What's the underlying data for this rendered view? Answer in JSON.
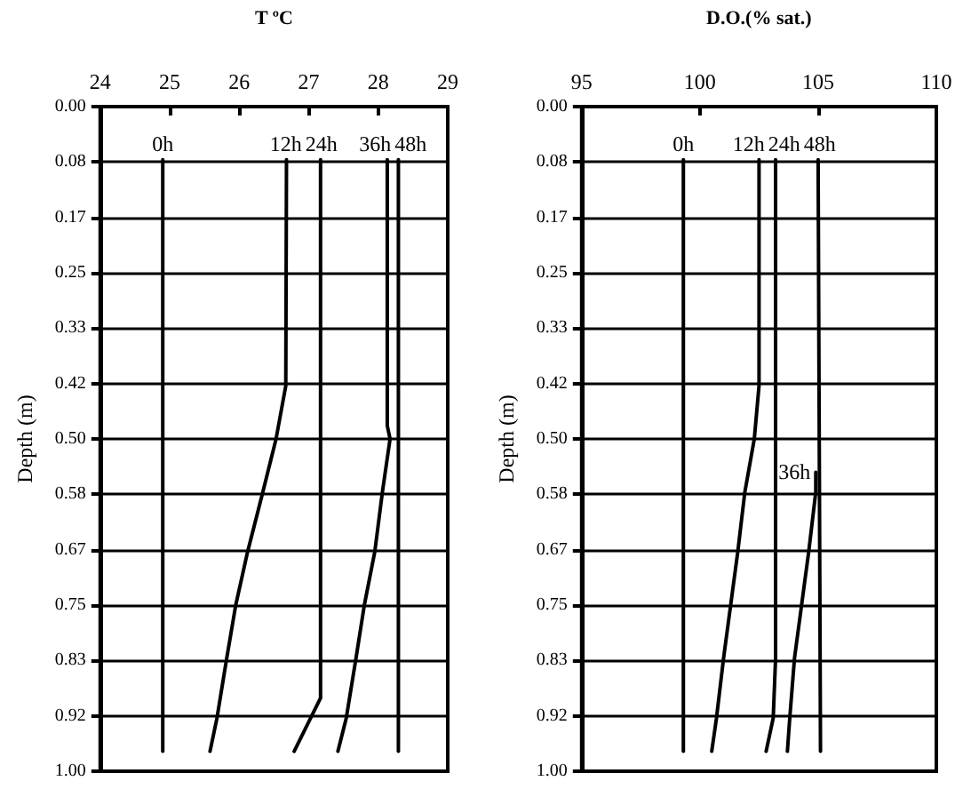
{
  "chart_data": [
    {
      "type": "line",
      "xlabel": "T ºC",
      "ylabel": "Depth (m)",
      "xlim": [
        24,
        29
      ],
      "xticks": [
        24,
        25,
        26,
        27,
        28,
        29
      ],
      "ylim": [
        1,
        0
      ],
      "yticks": [
        {
          "value": 0,
          "label": "0.00"
        },
        {
          "value": 0.0833,
          "label": "0.08"
        },
        {
          "value": 0.1667,
          "label": "0.17"
        },
        {
          "value": 0.25,
          "label": "0.25"
        },
        {
          "value": 0.3333,
          "label": "0.33"
        },
        {
          "value": 0.4167,
          "label": "0.42"
        },
        {
          "value": 0.5,
          "label": "0.50"
        },
        {
          "value": 0.5833,
          "label": "0.58"
        },
        {
          "value": 0.6667,
          "label": "0.67"
        },
        {
          "value": 0.75,
          "label": "0.75"
        },
        {
          "value": 0.8333,
          "label": "0.83"
        },
        {
          "value": 0.9167,
          "label": "0.92"
        },
        {
          "value": 1,
          "label": "1.00"
        }
      ],
      "grid": "y",
      "marker": "none",
      "line_style": "solid",
      "legend": false,
      "series": [
        {
          "name": "0h",
          "color": "#000000",
          "x": [
            24.9,
            24.9
          ],
          "values": [
            0.08,
            0.97
          ]
        },
        {
          "name": "12h",
          "color": "#000000",
          "x": [
            26.68,
            26.67,
            26.53,
            26.34,
            26.12,
            25.95,
            25.82,
            25.68,
            25.58
          ],
          "values": [
            0.08,
            0.42,
            0.5,
            0.58,
            0.67,
            0.75,
            0.83,
            0.92,
            0.97
          ]
        },
        {
          "name": "24h",
          "color": "#000000",
          "x": [
            27.17,
            27.17,
            26.79
          ],
          "values": [
            0.08,
            0.89,
            0.97
          ]
        },
        {
          "name": "36h",
          "color": "#000000",
          "x": [
            28.13,
            28.13,
            28.17,
            28.06,
            27.95,
            27.8,
            27.68,
            27.54,
            27.42
          ],
          "values": [
            0.08,
            0.48,
            0.5,
            0.58,
            0.67,
            0.75,
            0.83,
            0.92,
            0.97
          ]
        },
        {
          "name": "48h",
          "color": "#000000",
          "x": [
            28.29,
            28.29
          ],
          "values": [
            0.08,
            0.97
          ]
        }
      ]
    },
    {
      "type": "line",
      "xlabel": "D.O.(% sat.)",
      "ylabel": "Depth (m)",
      "xlim": [
        95,
        110
      ],
      "xticks": [
        95,
        100,
        105,
        110
      ],
      "ylim": [
        1,
        0
      ],
      "yticks": [
        {
          "value": 0,
          "label": "0.00"
        },
        {
          "value": 0.0833,
          "label": "0.08"
        },
        {
          "value": 0.1667,
          "label": "0.17"
        },
        {
          "value": 0.25,
          "label": "0.25"
        },
        {
          "value": 0.3333,
          "label": "0.33"
        },
        {
          "value": 0.4167,
          "label": "0.42"
        },
        {
          "value": 0.5,
          "label": "0.50"
        },
        {
          "value": 0.5833,
          "label": "0.58"
        },
        {
          "value": 0.6667,
          "label": "0.67"
        },
        {
          "value": 0.75,
          "label": "0.75"
        },
        {
          "value": 0.8333,
          "label": "0.83"
        },
        {
          "value": 0.9167,
          "label": "0.92"
        },
        {
          "value": 1,
          "label": "1.00"
        }
      ],
      "grid": "y",
      "marker": "none",
      "line_style": "solid",
      "legend": false,
      "series": [
        {
          "name": "0h",
          "color": "#000000",
          "x": [
            99.3,
            99.3
          ],
          "values": [
            0.08,
            0.97
          ]
        },
        {
          "name": "12h",
          "color": "#000000",
          "x": [
            102.5,
            102.5,
            102.3,
            101.9,
            101.6,
            101.3,
            101,
            100.7,
            100.5
          ],
          "values": [
            0.08,
            0.42,
            0.5,
            0.58,
            0.67,
            0.75,
            0.83,
            0.92,
            0.97
          ]
        },
        {
          "name": "24h",
          "color": "#000000",
          "x": [
            103.2,
            103.2,
            103.1,
            102.8
          ],
          "values": [
            0.08,
            0.83,
            0.92,
            0.97
          ]
        },
        {
          "name": "36h",
          "color": "#000000",
          "x": [
            104.9,
            104.9,
            104.6,
            104.3,
            104,
            103.8,
            103.7
          ],
          "values": [
            0.55,
            0.58,
            0.67,
            0.75,
            0.83,
            0.92,
            0.97
          ]
        },
        {
          "name": "48h",
          "color": "#000000",
          "x": [
            105,
            105.1
          ],
          "values": [
            0.08,
            0.97
          ]
        }
      ]
    }
  ]
}
